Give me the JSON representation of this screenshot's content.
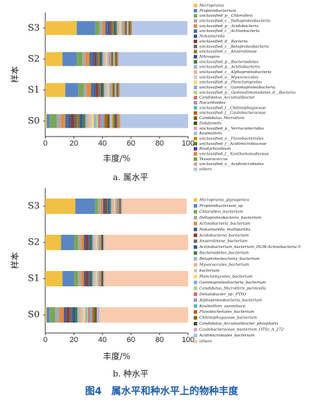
{
  "figure_caption": "图4　属水平和种水平上的物种丰度",
  "chart_data": [
    {
      "type": "bar",
      "orientation": "horizontal",
      "stacked": true,
      "caption": "a. 属水平",
      "xlabel": "丰度/%",
      "ylabel": "样本",
      "categories": [
        "S3",
        "S2",
        "S1",
        "S0"
      ],
      "xlim": [
        0,
        100
      ],
      "xticks": [
        0,
        20,
        40,
        60,
        80,
        100
      ],
      "series": [
        {
          "name": "Micropruina",
          "color": "#f2c144",
          "values": [
            22,
            12,
            14,
            1
          ]
        },
        {
          "name": "Propionibacterium",
          "color": "#5a86c4",
          "values": [
            13,
            10,
            9,
            2
          ]
        },
        {
          "name": "unclassified_p__Chloroflexi",
          "color": "#7aa65a",
          "values": [
            3,
            4,
            4,
            5
          ]
        },
        {
          "name": "unclassified_c__Deltaproteobacteria",
          "color": "#a9a9a9",
          "values": [
            2,
            2,
            2,
            3
          ]
        },
        {
          "name": "unclassified_p__Acidobacteria",
          "color": "#e88a3c",
          "values": [
            2,
            3,
            3,
            3
          ]
        },
        {
          "name": "unclassified_c__Actinobacteria",
          "color": "#3f6fb0",
          "values": [
            1.5,
            2,
            2,
            2
          ]
        },
        {
          "name": "Nakamurella",
          "color": "#4a5a8a",
          "values": [
            1.5,
            1.5,
            1.5,
            2
          ]
        },
        {
          "name": "unclassified_d__Bacteria",
          "color": "#8a3b2f",
          "values": [
            1,
            1.5,
            1.5,
            2
          ]
        },
        {
          "name": "unclassified_c__Betaproteobacteria",
          "color": "#6b6b6b",
          "values": [
            1,
            1,
            1,
            2
          ]
        },
        {
          "name": "unclassified_c__Anaerolineae",
          "color": "#9c7a2c",
          "values": [
            1,
            1,
            1,
            2
          ]
        },
        {
          "name": "Nitrospira",
          "color": "#2f5a8c",
          "values": [
            1,
            1,
            1,
            2
          ]
        },
        {
          "name": "unclassified_p__Bacteroidetes",
          "color": "#4f7a3a",
          "values": [
            1,
            1,
            1,
            2
          ]
        },
        {
          "name": "unclassified_p__Actinobacteria",
          "color": "#9bb7e0",
          "values": [
            1,
            1,
            1,
            1.5
          ]
        },
        {
          "name": "unclassified_c__Alphaproteobacteria",
          "color": "#f4b183",
          "values": [
            1,
            1,
            1,
            1.5
          ]
        },
        {
          "name": "unclassified_o__Myxococcales",
          "color": "#c9c9c9",
          "values": [
            0.5,
            1,
            1,
            1.5
          ]
        },
        {
          "name": "unclassified_p__Planctomycetes",
          "color": "#ffd966",
          "values": [
            0.5,
            0.5,
            0.5,
            1.5
          ]
        },
        {
          "name": "unclassified_c__Gammaproteobacteria",
          "color": "#8faadc",
          "values": [
            0.5,
            0.5,
            0.5,
            1.5
          ]
        },
        {
          "name": "unclassified_p__Gemmatimonadetes_d__Bacteria",
          "color": "#a9d18e",
          "values": [
            0.5,
            0.5,
            0.5,
            1.5
          ]
        },
        {
          "name": "Candidatus_Accumulibacter",
          "color": "#d46a6a",
          "values": [
            0.5,
            0.5,
            0.5,
            1.5
          ]
        },
        {
          "name": "Nocardioides",
          "color": "#b08fc7",
          "values": [
            0.5,
            0.5,
            0.5,
            1.5
          ]
        },
        {
          "name": "unclassified_f__Chitinophagaceae",
          "color": "#5fb7b2",
          "values": [
            0.5,
            0.5,
            0.5,
            1.5
          ]
        },
        {
          "name": "unclassified_f__Caulobacteraceae",
          "color": "#c55a11",
          "values": [
            0.5,
            0.5,
            0.5,
            1.5
          ]
        },
        {
          "name": "Candidatus_Microthrix",
          "color": "#7f6000",
          "values": [
            0.5,
            0.5,
            0.5,
            1
          ]
        },
        {
          "name": "Dokdonella",
          "color": "#375623",
          "values": [
            0.5,
            0.5,
            0.5,
            1
          ]
        },
        {
          "name": "unclassified_p__Verrucomicrobia",
          "color": "#e2a0c0",
          "values": [
            0.5,
            0.5,
            0.5,
            1
          ]
        },
        {
          "name": "Kouleothrix",
          "color": "#9dc3e6",
          "values": [
            0.5,
            0.5,
            0.5,
            1
          ]
        },
        {
          "name": "unclassified_o__Flavobacteriales",
          "color": "#bf9000",
          "values": [
            0.5,
            0.5,
            0.5,
            1
          ]
        },
        {
          "name": "unclassified_f__Acidimicrobiaceae",
          "color": "#548235",
          "values": [
            0.5,
            0.5,
            0.5,
            1
          ]
        },
        {
          "name": "Bradyrhizobium",
          "color": "#7030a0",
          "values": [
            0.5,
            0.5,
            0.5,
            1
          ]
        },
        {
          "name": "unclassified_f__Xanthomonadaceae",
          "color": "#ed7d31",
          "values": [
            0.5,
            0.5,
            0.5,
            1
          ]
        },
        {
          "name": "Tessaracoccus",
          "color": "#70ad47",
          "values": [
            0.5,
            0.5,
            0.5,
            1
          ]
        },
        {
          "name": "unclassified_o__Acidimicrobiales",
          "color": "#d9a8a8",
          "values": [
            0.5,
            0.5,
            0.5,
            1
          ]
        },
        {
          "name": "others",
          "color": "#b4c7e7",
          "values": [
            38.5,
            47.5,
            46.5,
            47
          ]
        }
      ]
    },
    {
      "type": "bar",
      "orientation": "horizontal",
      "stacked": true,
      "caption": "b. 种水平",
      "xlabel": "丰度/%",
      "ylabel": "样本",
      "categories": [
        "S3",
        "S2",
        "S1",
        "S0"
      ],
      "xlim": [
        0,
        100
      ],
      "xticks": [
        0,
        20,
        40,
        60,
        80,
        100
      ],
      "series": [
        {
          "name": "Micropruina_glycogenica",
          "color": "#f2c144",
          "values": [
            21,
            11,
            12,
            1
          ]
        },
        {
          "name": "Propionibacterium_sp.",
          "color": "#5a86c4",
          "values": [
            14,
            9,
            8,
            2
          ]
        },
        {
          "name": "Chloroflexi_bacterium",
          "color": "#7aa65a",
          "values": [
            2,
            3,
            3,
            4
          ]
        },
        {
          "name": "Deltaproteobacteria_bacterium",
          "color": "#a9a9a9",
          "values": [
            2,
            2,
            2,
            3
          ]
        },
        {
          "name": "Actinobacteria_bacterium",
          "color": "#e88a3c",
          "values": [
            1.5,
            2,
            2,
            3
          ]
        },
        {
          "name": "Nakamurella_multipartita",
          "color": "#4a5a8a",
          "values": [
            1.5,
            1.5,
            1.5,
            2
          ]
        },
        {
          "name": "Acidobacteria_bacterium",
          "color": "#8a3b2f",
          "values": [
            1,
            1.5,
            1.5,
            2
          ]
        },
        {
          "name": "Anaerolineae_bacterium",
          "color": "#6b6b6b",
          "values": [
            1,
            1,
            1,
            2
          ]
        },
        {
          "name": "Actinobacterium_bacterium_HGW-Actinobacteria-5",
          "color": "#2f5a8c",
          "values": [
            1,
            1,
            1,
            2
          ]
        },
        {
          "name": "Bacteroidetes_bacterium",
          "color": "#4f7a3a",
          "values": [
            1,
            1,
            1,
            1.5
          ]
        },
        {
          "name": "Betaproteobacteria_bacterium",
          "color": "#9bb7e0",
          "values": [
            1,
            1,
            1,
            1.5
          ]
        },
        {
          "name": "Myxococcales_bacterium",
          "color": "#f4b183",
          "values": [
            1,
            1,
            1,
            1.5
          ]
        },
        {
          "name": "bacterium",
          "color": "#c9c9c9",
          "values": [
            0.5,
            1,
            1,
            1.5
          ]
        },
        {
          "name": "Planctomycetes_bacterium",
          "color": "#ffd966",
          "values": [
            0.5,
            0.5,
            0.5,
            1
          ]
        },
        {
          "name": "Gammaproteobacteria_bacterium",
          "color": "#8faadc",
          "values": [
            0.5,
            0.5,
            0.5,
            1
          ]
        },
        {
          "name": "Candidatus_Microthrix_parvicella",
          "color": "#a9d18e",
          "values": [
            0.5,
            0.5,
            0.5,
            1
          ]
        },
        {
          "name": "Dehalobacter_sp._FTH1",
          "color": "#d46a6a",
          "values": [
            0.5,
            0.5,
            0.5,
            1
          ]
        },
        {
          "name": "Alphaproteobacteria_bacterium",
          "color": "#b08fc7",
          "values": [
            0.5,
            0.5,
            0.5,
            1
          ]
        },
        {
          "name": "Kouleothrix_aurantiaca",
          "color": "#5fb7b2",
          "values": [
            0.5,
            0.5,
            0.5,
            1
          ]
        },
        {
          "name": "Flavobacteriales_bacterium",
          "color": "#c55a11",
          "values": [
            0.5,
            0.5,
            0.5,
            1
          ]
        },
        {
          "name": "Chitinophagaceae_bacterium",
          "color": "#7f6000",
          "values": [
            0.5,
            0.5,
            0.5,
            1
          ]
        },
        {
          "name": "Candidatus_Accumulibacter_phosphatis",
          "color": "#375623",
          "values": [
            0.5,
            0.5,
            0.5,
            1
          ]
        },
        {
          "name": "Caulobacteraceae_bacterium_OTSz_A_272",
          "color": "#e2a0c0",
          "values": [
            0.5,
            0.5,
            0.5,
            1
          ]
        },
        {
          "name": "Acidimicrobiales_bacterium",
          "color": "#9dc3e6",
          "values": [
            0.5,
            0.5,
            0.5,
            1
          ]
        },
        {
          "name": "others",
          "color": "#f8cbad",
          "values": [
            45,
            58.5,
            58.5,
            62
          ]
        }
      ]
    }
  ]
}
